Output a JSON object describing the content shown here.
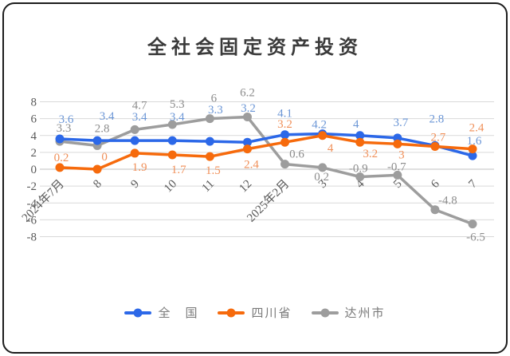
{
  "chart_data": {
    "type": "line",
    "title": "全社会固定资产投资",
    "categories": [
      "2024年7月",
      "8",
      "9",
      "10",
      "11",
      "12",
      "2025年2月",
      "3",
      "4",
      "5",
      "6",
      "7"
    ],
    "series": [
      {
        "name": "全　国",
        "color": "#2c68e8",
        "label_color": "#6b96d6",
        "values": [
          3.6,
          3.4,
          3.4,
          3.4,
          3.3,
          3.2,
          4.1,
          4.2,
          4,
          3.7,
          2.8,
          1.6
        ]
      },
      {
        "name": "四川省",
        "color": "#f66a0c",
        "label_color": "#f08f58",
        "values": [
          0.2,
          0,
          1.9,
          1.7,
          1.5,
          2.4,
          3.2,
          4,
          3.2,
          3,
          2.7,
          2.4
        ]
      },
      {
        "name": "达州市",
        "color": "#9d9d9d",
        "label_color": "#8c8c8c",
        "values": [
          3.3,
          2.8,
          4.7,
          5.3,
          6,
          6.2,
          0.6,
          0.2,
          -0.9,
          -0.7,
          -4.8,
          -6.5
        ]
      }
    ],
    "y_ticks": [
      8,
      6,
      4,
      2,
      0,
      -2,
      -4,
      -6,
      -8
    ],
    "ylim": [
      -8,
      8
    ],
    "grid": true,
    "legend_position": "bottom",
    "axis_label_color": "#595959",
    "gridline_color": "#d9d9d9",
    "zero_line_color": "#c0c0c0",
    "legend_text_color": "#7a7a7a"
  }
}
